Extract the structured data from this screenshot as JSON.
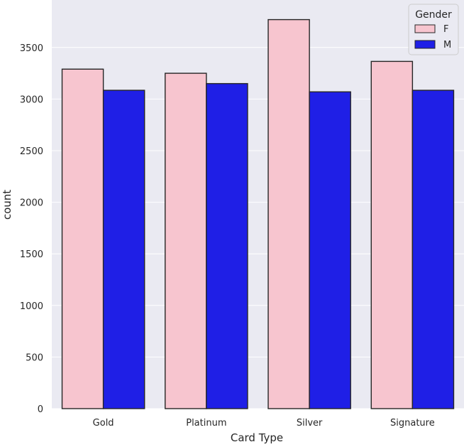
{
  "chart_data": {
    "type": "bar",
    "categories": [
      "Gold",
      "Platinum",
      "Silver",
      "Signature"
    ],
    "series": [
      {
        "name": "F",
        "color": "#f7c5cf",
        "values": [
          3290,
          3250,
          3770,
          3365
        ]
      },
      {
        "name": "M",
        "color": "#1f1fe6",
        "values": [
          3085,
          3150,
          3070,
          3085
        ]
      }
    ],
    "xlabel": "Card Type",
    "ylabel": "count",
    "ylim": [
      0,
      3960
    ],
    "yticks": [
      0,
      500,
      1000,
      1500,
      2000,
      2500,
      3000,
      3500
    ],
    "grid": true,
    "legend": {
      "title": "Gender",
      "position": "top-right"
    },
    "colors": {
      "background": "#eaeaf2",
      "grid": "#ffffff",
      "bar_edge": "#262626"
    }
  }
}
